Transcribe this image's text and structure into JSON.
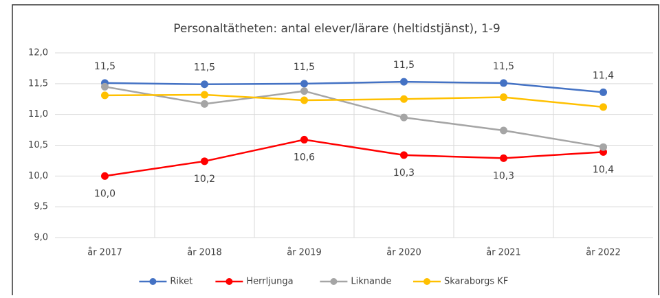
{
  "chart_data": {
    "type": "line",
    "title": "Personaltätheten: antal elever/lärare (heltidstjänst), 1-9",
    "categories": [
      "år 2017",
      "år 2018",
      "år 2019",
      "år 2020",
      "år 2021",
      "år 2022"
    ],
    "series": [
      {
        "name": "Riket",
        "color": "#4472c4",
        "values": [
          11.51,
          11.49,
          11.5,
          11.53,
          11.51,
          11.36
        ],
        "value_labels": [
          "11,5",
          "11,5",
          "11,5",
          "11,5",
          "11,5",
          "11,4"
        ]
      },
      {
        "name": "Herrljunga",
        "color": "#ff0000",
        "values": [
          10.0,
          10.24,
          10.59,
          10.34,
          10.29,
          10.39
        ],
        "value_labels": [
          "10,0",
          "10,2",
          "10,6",
          "10,3",
          "10,3",
          "10,4"
        ]
      },
      {
        "name": "Liknande",
        "color": "#a5a5a5",
        "values": [
          11.45,
          11.17,
          11.38,
          10.95,
          10.74,
          10.47
        ]
      },
      {
        "name": "Skaraborgs KF",
        "color": "#ffc000",
        "values": [
          11.31,
          11.32,
          11.23,
          11.25,
          11.28,
          11.12
        ]
      }
    ],
    "ylim": [
      9,
      12
    ],
    "yticks": [
      {
        "value": 9,
        "label": "9,0"
      },
      {
        "value": 9.5,
        "label": "9,5"
      },
      {
        "value": 10,
        "label": "10,0"
      },
      {
        "value": 10.5,
        "label": "10,5"
      },
      {
        "value": 11,
        "label": "11,0"
      },
      {
        "value": 11.5,
        "label": "11,5"
      },
      {
        "value": 12,
        "label": "12,0"
      }
    ],
    "grid": true,
    "legend": "bottom"
  }
}
